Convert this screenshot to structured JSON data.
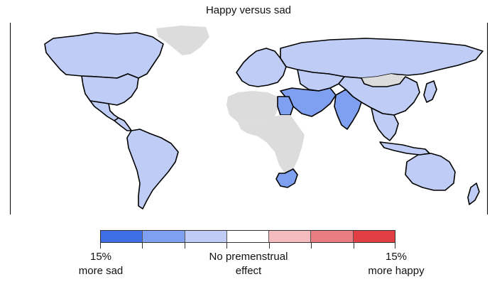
{
  "title": "Happy versus sad",
  "legend": {
    "colors": [
      "#3f6fe6",
      "#7f9ff0",
      "#bfcdf6",
      "#ffffff",
      "#f4bcbe",
      "#ea7d82",
      "#e23f45"
    ],
    "left_label": [
      "15%",
      "more sad"
    ],
    "center_label": [
      "No premenstrual",
      "effect"
    ],
    "right_label": [
      "15%",
      "more happy"
    ]
  },
  "map": {
    "no_data_color": "#dcdcdc",
    "border_color": "#000000",
    "regions": [
      {
        "name": "Canada",
        "fill": "#bfcdf6"
      },
      {
        "name": "United States",
        "fill": "#bfcdf6"
      },
      {
        "name": "Mexico",
        "fill": "#bfcdf6"
      },
      {
        "name": "Central America",
        "fill": "#bfcdf6"
      },
      {
        "name": "South America",
        "fill": "#bfcdf6"
      },
      {
        "name": "Greenland",
        "fill": "#dcdcdc"
      },
      {
        "name": "Europe",
        "fill": "#bfcdf6"
      },
      {
        "name": "Russia",
        "fill": "#bfcdf6"
      },
      {
        "name": "Central Asia",
        "fill": "#bfcdf6"
      },
      {
        "name": "Mongolia",
        "fill": "#dcdcdc"
      },
      {
        "name": "China",
        "fill": "#bfcdf6"
      },
      {
        "name": "Middle East",
        "fill": "#7f9ff0"
      },
      {
        "name": "India",
        "fill": "#7f9ff0"
      },
      {
        "name": "Southeast Asia",
        "fill": "#bfcdf6"
      },
      {
        "name": "Japan",
        "fill": "#bfcdf6"
      },
      {
        "name": "North Africa",
        "fill": "#dcdcdc"
      },
      {
        "name": "Egypt",
        "fill": "#7f9ff0"
      },
      {
        "name": "Sub-Saharan Africa",
        "fill": "#dcdcdc"
      },
      {
        "name": "South Africa",
        "fill": "#7f9ff0"
      },
      {
        "name": "Australia",
        "fill": "#bfcdf6"
      },
      {
        "name": "New Zealand",
        "fill": "#bfcdf6"
      },
      {
        "name": "Indonesia",
        "fill": "#bfcdf6"
      }
    ]
  }
}
